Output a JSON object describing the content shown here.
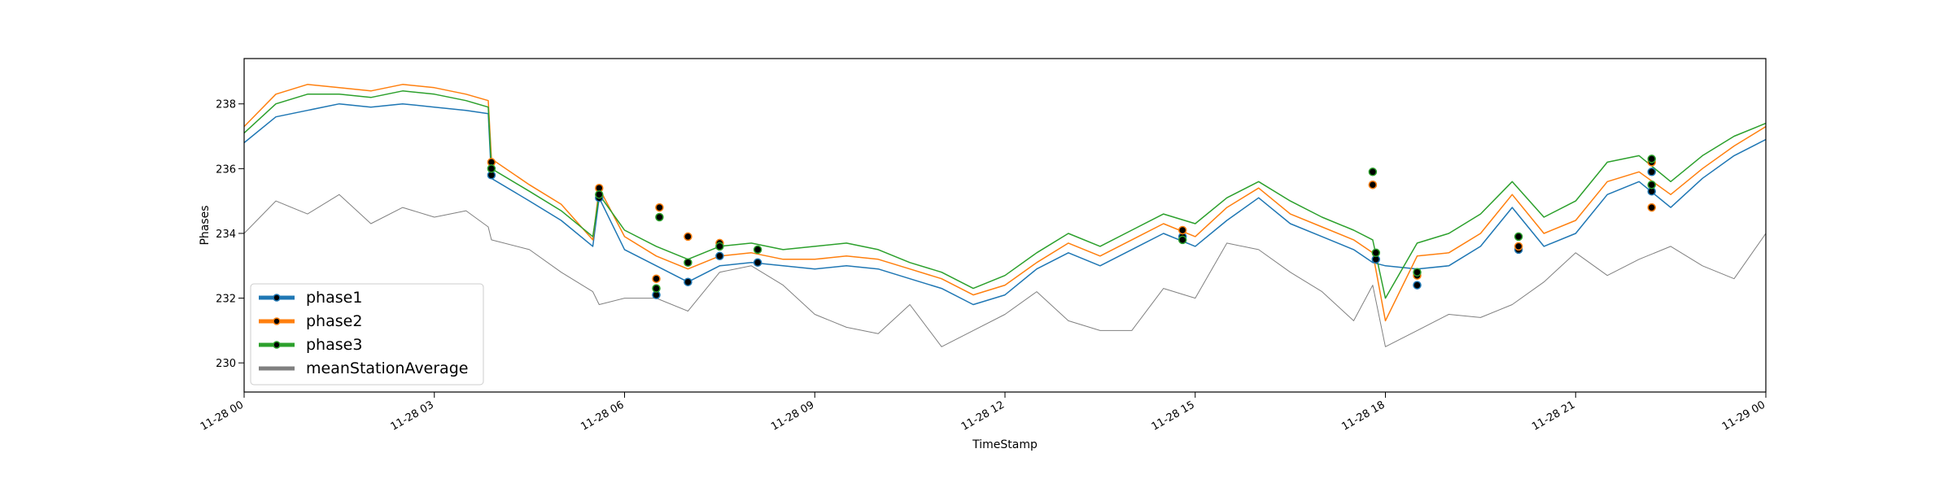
{
  "chart_data": {
    "type": "line",
    "title": "",
    "xlabel": "TimeStamp",
    "ylabel": "Phases",
    "xlim": [
      "11-28 00:00",
      "11-29 00:00"
    ],
    "ylim": [
      229.1,
      239.4
    ],
    "x_ticks": [
      "11-28 00",
      "11-28 03",
      "11-28 06",
      "11-28 09",
      "11-28 12",
      "11-28 15",
      "11-28 18",
      "11-28 21",
      "11-29 00"
    ],
    "y_ticks": [
      230,
      232,
      234,
      236,
      238
    ],
    "legend_position": "lower-left",
    "grid": false,
    "x_hours": [
      0,
      0.5,
      1,
      1.5,
      2,
      2.5,
      3,
      3.5,
      3.85,
      3.9,
      4.5,
      5,
      5.5,
      5.6,
      6,
      6.5,
      7,
      7.5,
      8,
      8.5,
      9,
      9.5,
      10,
      10.5,
      11,
      11.5,
      12,
      12.5,
      13,
      13.5,
      14,
      14.5,
      15,
      15.5,
      16,
      16.5,
      17,
      17.5,
      17.8,
      18,
      18.5,
      19,
      19.5,
      20,
      20.5,
      21,
      21.5,
      22,
      22.5,
      23,
      23.5,
      24
    ],
    "series": [
      {
        "name": "phase1",
        "color": "#1f77b4",
        "values": [
          236.8,
          237.6,
          237.8,
          238.0,
          237.9,
          238.0,
          237.9,
          237.8,
          237.7,
          235.7,
          235.0,
          234.4,
          233.6,
          235.1,
          233.5,
          233.0,
          232.5,
          233.0,
          233.1,
          233.0,
          232.9,
          233.0,
          232.9,
          232.6,
          232.3,
          231.8,
          232.1,
          232.9,
          233.4,
          233.0,
          233.5,
          234.0,
          233.6,
          234.4,
          235.1,
          234.3,
          233.9,
          233.5,
          233.1,
          233.0,
          232.9,
          233.0,
          233.6,
          234.8,
          233.6,
          234.0,
          235.2,
          235.6,
          234.8,
          235.7,
          236.4,
          236.9
        ]
      },
      {
        "name": "phase2",
        "color": "#ff7f0e",
        "values": [
          237.3,
          238.3,
          238.6,
          238.5,
          238.4,
          238.6,
          238.5,
          238.3,
          238.1,
          236.3,
          235.5,
          234.9,
          233.8,
          235.4,
          233.9,
          233.3,
          232.9,
          233.3,
          233.4,
          233.2,
          233.2,
          233.3,
          233.2,
          232.9,
          232.6,
          232.1,
          232.4,
          233.1,
          233.7,
          233.3,
          233.8,
          234.3,
          233.9,
          234.8,
          235.4,
          234.6,
          234.2,
          233.8,
          233.4,
          231.3,
          233.3,
          233.4,
          234.0,
          235.2,
          234.0,
          234.4,
          235.6,
          235.9,
          235.2,
          236.0,
          236.7,
          237.3
        ]
      },
      {
        "name": "phase3",
        "color": "#2ca02c",
        "values": [
          237.1,
          238.0,
          238.3,
          238.3,
          238.2,
          238.4,
          238.3,
          238.1,
          237.9,
          236.0,
          235.3,
          234.7,
          233.9,
          235.2,
          234.1,
          233.6,
          233.2,
          233.6,
          233.7,
          233.5,
          233.6,
          233.7,
          233.5,
          233.1,
          232.8,
          232.3,
          232.7,
          233.4,
          234.0,
          233.6,
          234.1,
          234.6,
          234.3,
          235.1,
          235.6,
          235.0,
          234.5,
          234.1,
          233.8,
          232.0,
          233.7,
          234.0,
          234.6,
          235.6,
          234.5,
          235.0,
          236.2,
          236.4,
          235.6,
          236.4,
          237.0,
          237.4
        ]
      },
      {
        "name": "meanStationAverage",
        "color": "#808080",
        "values": [
          234.0,
          235.0,
          234.6,
          235.2,
          234.3,
          234.8,
          234.5,
          234.7,
          234.2,
          233.8,
          233.5,
          232.8,
          232.2,
          231.8,
          232.0,
          232.0,
          231.6,
          232.8,
          233.0,
          232.4,
          231.5,
          231.1,
          230.9,
          231.8,
          230.5,
          231.0,
          231.5,
          232.2,
          231.3,
          231.0,
          231.0,
          232.3,
          232.0,
          233.7,
          233.5,
          232.8,
          232.2,
          231.3,
          232.4,
          230.5,
          231.0,
          231.5,
          231.4,
          231.8,
          232.5,
          233.4,
          232.7,
          233.2,
          233.6,
          233.0,
          232.6,
          234.0
        ]
      }
    ],
    "markers": {
      "phase1": [
        [
          3.9,
          235.8
        ],
        [
          5.6,
          235.1
        ],
        [
          6.5,
          232.1
        ],
        [
          7.0,
          232.5
        ],
        [
          7.5,
          233.3
        ],
        [
          8.1,
          233.1
        ],
        [
          14.8,
          233.9
        ],
        [
          17.8,
          235.5
        ],
        [
          17.85,
          233.2
        ],
        [
          18.5,
          232.4
        ],
        [
          20.1,
          233.5
        ],
        [
          22.2,
          235.3
        ],
        [
          22.2,
          235.9
        ]
      ],
      "phase2": [
        [
          3.9,
          236.2
        ],
        [
          5.6,
          235.4
        ],
        [
          6.55,
          234.8
        ],
        [
          6.5,
          232.6
        ],
        [
          7.0,
          233.9
        ],
        [
          7.5,
          233.7
        ],
        [
          14.8,
          234.1
        ],
        [
          17.8,
          235.5
        ],
        [
          18.5,
          232.7
        ],
        [
          20.1,
          233.6
        ],
        [
          22.2,
          236.2
        ],
        [
          22.2,
          234.8
        ]
      ],
      "phase3": [
        [
          3.9,
          236.0
        ],
        [
          5.6,
          235.2
        ],
        [
          6.55,
          234.5
        ],
        [
          6.5,
          232.3
        ],
        [
          7.0,
          233.1
        ],
        [
          7.5,
          233.6
        ],
        [
          8.1,
          233.5
        ],
        [
          14.8,
          233.8
        ],
        [
          17.8,
          235.9
        ],
        [
          17.85,
          233.4
        ],
        [
          18.5,
          232.8
        ],
        [
          20.1,
          233.9
        ],
        [
          22.2,
          236.3
        ],
        [
          22.2,
          235.5
        ]
      ]
    }
  }
}
